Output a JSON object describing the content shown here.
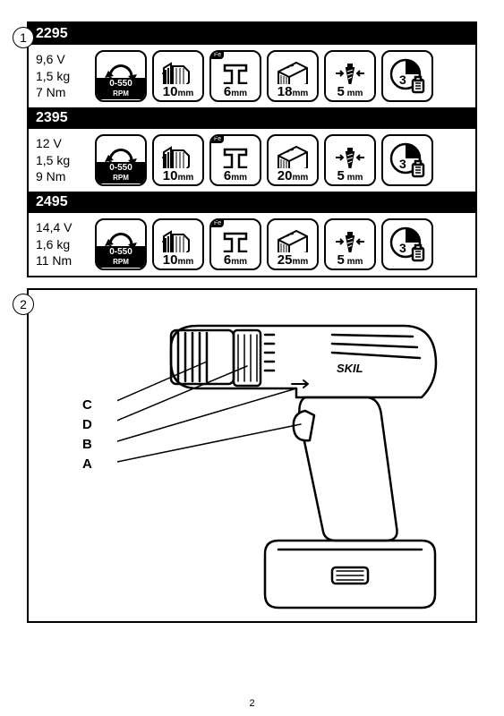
{
  "page_number": "2",
  "panel1": {
    "number": "1",
    "models": [
      {
        "id": "2295",
        "specs": [
          "9,6 V",
          "1,5 kg",
          "7 Nm"
        ],
        "icons": {
          "rpm": "0-550",
          "chuck_mm": "10",
          "steel_mm": "6",
          "wood_mm": "18",
          "screw_mm": "5",
          "charge_h": "3"
        }
      },
      {
        "id": "2395",
        "specs": [
          "12 V",
          "1,5 kg",
          "9 Nm"
        ],
        "icons": {
          "rpm": "0-550",
          "chuck_mm": "10",
          "steel_mm": "6",
          "wood_mm": "20",
          "screw_mm": "5",
          "charge_h": "3"
        }
      },
      {
        "id": "2495",
        "specs": [
          "14,4 V",
          "1,6 kg",
          "11 Nm"
        ],
        "icons": {
          "rpm": "0-550",
          "chuck_mm": "10",
          "steel_mm": "6",
          "wood_mm": "25",
          "screw_mm": "5",
          "charge_h": "3"
        }
      }
    ]
  },
  "panel2": {
    "number": "2",
    "brand": "SKIL",
    "callouts": [
      "C",
      "D",
      "B",
      "A"
    ]
  },
  "labels": {
    "rpm_unit": "RPM",
    "mm_unit": "mm",
    "fe": "Fe"
  },
  "colors": {
    "fg": "#000000",
    "bg": "#ffffff"
  }
}
